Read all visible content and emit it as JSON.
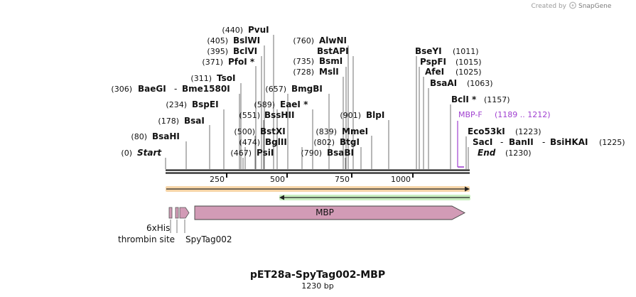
{
  "header": {
    "created_by": "Created by",
    "brand": "SnapGene"
  },
  "map": {
    "title": "pET28a-SpyTag002-MBP",
    "length_label": "1230 bp"
  },
  "ruler": {
    "ticks": [
      "250",
      "500",
      "750",
      "1000"
    ]
  },
  "sites": [
    {
      "pos": "(0)",
      "name": "Start"
    },
    {
      "pos": "(80)",
      "name": "BsaHI"
    },
    {
      "pos": "(178)",
      "name": "BsaI"
    },
    {
      "pos": "(234)",
      "name": "BspEI"
    },
    {
      "pos": "(306)",
      "name": "BaeGI",
      "sep": "-",
      "name2": "Bme1580I"
    },
    {
      "pos": "(311)",
      "name": "TsoI"
    },
    {
      "pos": "(371)",
      "name": "PfoI *"
    },
    {
      "pos": "(395)",
      "name": "BclVI"
    },
    {
      "pos": "(405)",
      "name": "BslWI"
    },
    {
      "pos": "(440)",
      "name": "PvuI"
    },
    {
      "pos": "(467)",
      "name": "PsiI"
    },
    {
      "pos": "(474)",
      "name": "BglII"
    },
    {
      "pos": "(500)",
      "name": "BstXI"
    },
    {
      "pos": "(551)",
      "name": "BssHII"
    },
    {
      "pos": "(589)",
      "name": "EaeI *"
    },
    {
      "pos": "(657)",
      "name": "BmgBI"
    },
    {
      "pos": "(728)",
      "name": "MslI"
    },
    {
      "pos": "(735)",
      "name": "BsmI"
    },
    {
      "pos": "(760)",
      "name": "AlwNI"
    },
    {
      "pos": "",
      "name": "BstAPI"
    },
    {
      "pos": "(790)",
      "name": "BsaBI"
    },
    {
      "pos": "(802)",
      "name": "BtgI"
    },
    {
      "pos": "(839)",
      "name": "MmeI"
    },
    {
      "pos": "(901)",
      "name": "BlpI"
    },
    {
      "pos": "(1011)",
      "name": "BseYI"
    },
    {
      "pos": "(1015)",
      "name": "PspFI"
    },
    {
      "pos": "(1025)",
      "name": "AfeI"
    },
    {
      "pos": "(1063)",
      "name": "BsaAI"
    },
    {
      "pos": "(1157)",
      "name": "BclI *"
    },
    {
      "pos": "(1223)",
      "name": "Eco53kI"
    },
    {
      "pos": "(1225)",
      "name": "SacI",
      "sep": "-",
      "name2": "BanII",
      "sep2": "-",
      "name3": "BsiHKAI"
    },
    {
      "pos": "(1230)",
      "name": "End"
    }
  ],
  "primer": {
    "name": "MBP-F",
    "range": "(1189 .. 1212)",
    "color": "#a040d0"
  },
  "features": {
    "his": "6xHis",
    "thrombin": "thrombin site",
    "spytag": "SpyTag002",
    "mbp": "MBP",
    "feature_color": "#d29bb6",
    "orf_forward_color": "#f0a030",
    "orf_reverse_color": "#4ab53a"
  }
}
